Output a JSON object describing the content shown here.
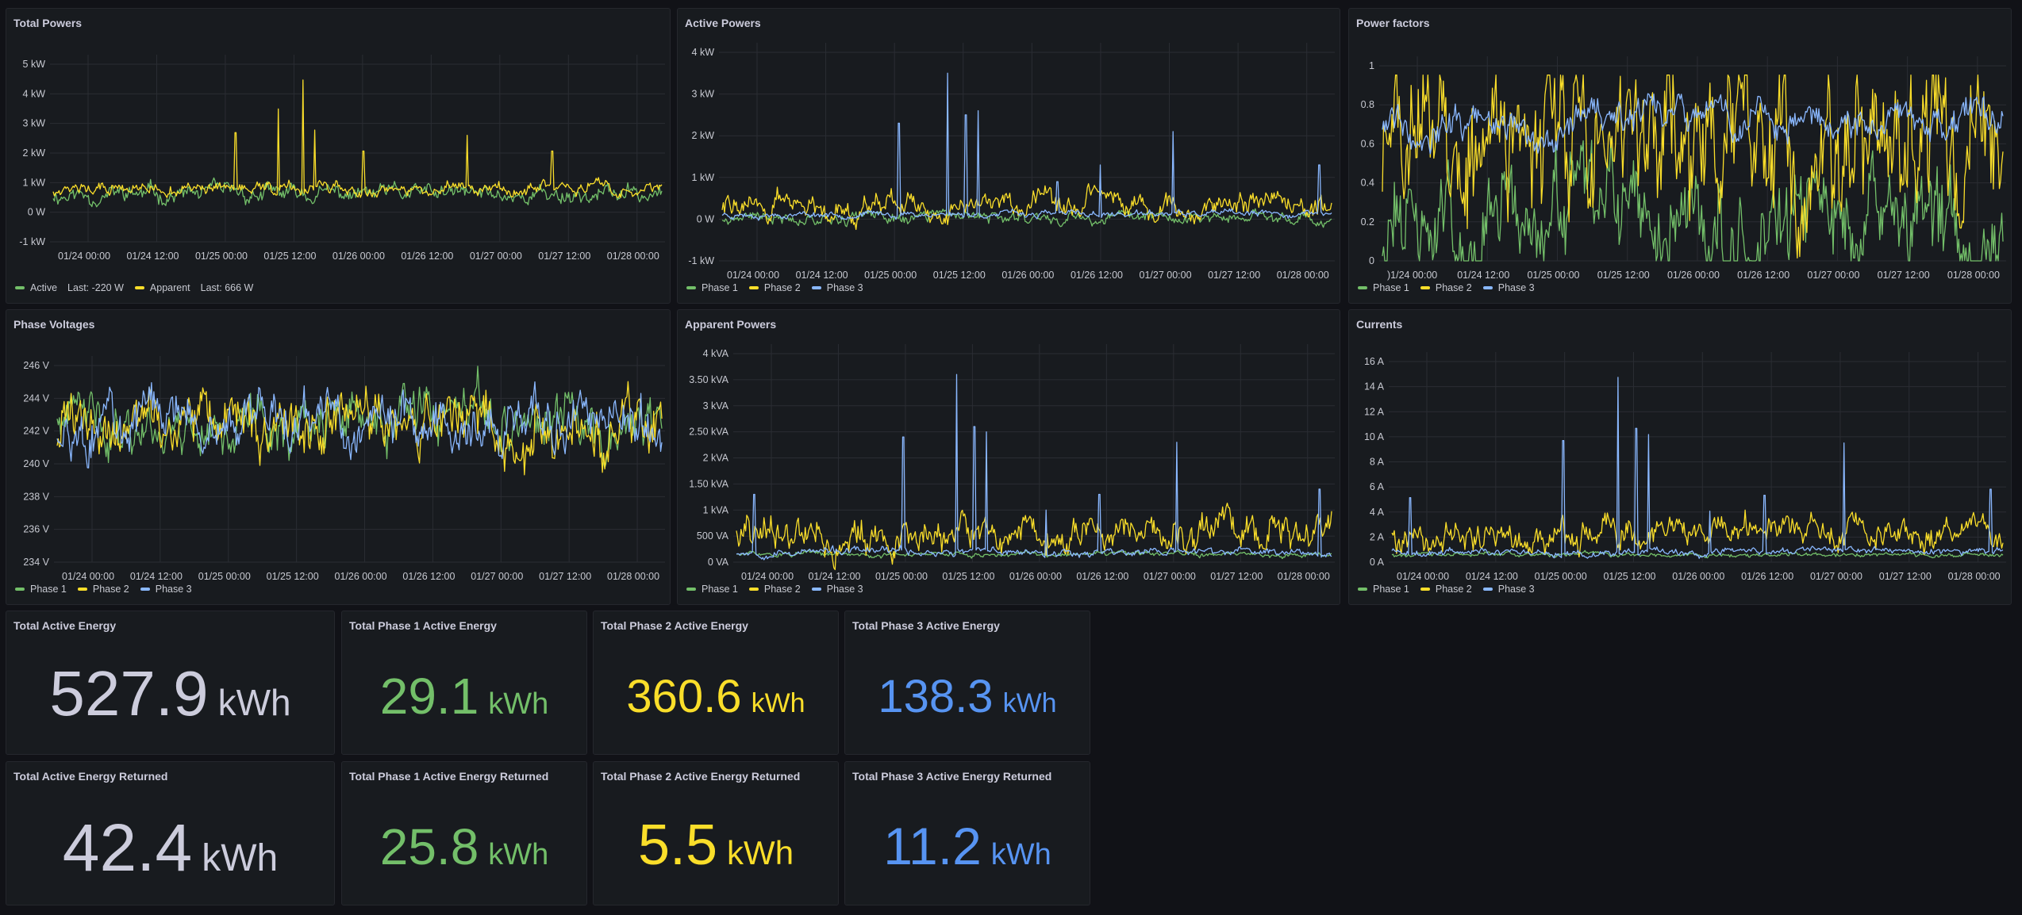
{
  "colors": {
    "phase1": "#73bf69",
    "phase2": "#fade2a",
    "phase3": "#8ab8ff",
    "neutral": "#ccccdc",
    "blue": "#5794f2"
  },
  "x_ticks": [
    "01/24 00:00",
    "01/24 12:00",
    "01/25 00:00",
    "01/25 12:00",
    "01/26 00:00",
    "01/26 12:00",
    "01/27 00:00",
    "01/27 12:00",
    "01/28 00:00"
  ],
  "x_ticks_pf": [
    ")1/24 00:00",
    "01/24 12:00",
    "01/25 00:00",
    "01/25 12:00",
    "01/26 00:00",
    "01/26 12:00",
    "01/27 00:00",
    "01/27 12:00",
    "01/28 00:00"
  ],
  "panels": {
    "total_powers": {
      "title": "Total Powers",
      "y_ticks": [
        "5 kW",
        "4 kW",
        "3 kW",
        "2 kW",
        "1 kW",
        "0 W",
        "-1 kW"
      ],
      "legend": [
        {
          "label": "Active",
          "last": "Last: -220 W",
          "color": "#73bf69"
        },
        {
          "label": "Apparent",
          "last": "Last: 666 W",
          "color": "#fade2a"
        }
      ]
    },
    "active_powers": {
      "title": "Active Powers",
      "y_ticks": [
        "4 kW",
        "3 kW",
        "2 kW",
        "1 kW",
        "0 W",
        "-1 kW"
      ],
      "legend": [
        {
          "label": "Phase 1",
          "color": "#73bf69"
        },
        {
          "label": "Phase 2",
          "color": "#fade2a"
        },
        {
          "label": "Phase 3",
          "color": "#8ab8ff"
        }
      ]
    },
    "power_factors": {
      "title": "Power factors",
      "y_ticks": [
        "1",
        "0.8",
        "0.6",
        "0.4",
        "0.2",
        "0"
      ],
      "legend": [
        {
          "label": "Phase 1",
          "color": "#73bf69"
        },
        {
          "label": "Phase 2",
          "color": "#fade2a"
        },
        {
          "label": "Phase 3",
          "color": "#8ab8ff"
        }
      ]
    },
    "phase_voltages": {
      "title": "Phase Voltages",
      "y_ticks": [
        "246 V",
        "244 V",
        "242 V",
        "240 V",
        "238 V",
        "236 V",
        "234 V"
      ],
      "legend": [
        {
          "label": "Phase 1",
          "color": "#73bf69"
        },
        {
          "label": "Phase 2",
          "color": "#fade2a"
        },
        {
          "label": "Phase 3",
          "color": "#8ab8ff"
        }
      ]
    },
    "apparent_powers": {
      "title": "Apparent Powers",
      "y_ticks": [
        "4 kVA",
        "3.50 kVA",
        "3 kVA",
        "2.50 kVA",
        "2 kVA",
        "1.50 kVA",
        "1 kVA",
        "500 VA",
        "0 VA"
      ],
      "legend": [
        {
          "label": "Phase 1",
          "color": "#73bf69"
        },
        {
          "label": "Phase 2",
          "color": "#fade2a"
        },
        {
          "label": "Phase 3",
          "color": "#8ab8ff"
        }
      ]
    },
    "currents": {
      "title": "Currents",
      "y_ticks": [
        "16 A",
        "14 A",
        "12 A",
        "10 A",
        "8 A",
        "6 A",
        "4 A",
        "2 A",
        "0 A"
      ],
      "legend": [
        {
          "label": "Phase 1",
          "color": "#73bf69"
        },
        {
          "label": "Phase 2",
          "color": "#fade2a"
        },
        {
          "label": "Phase 3",
          "color": "#8ab8ff"
        }
      ]
    }
  },
  "stats": {
    "total_active_energy": {
      "title": "Total Active Energy",
      "value": "527.9",
      "unit": "kWh",
      "color": "#ccccdc"
    },
    "phase1_active_energy": {
      "title": "Total Phase 1 Active Energy",
      "value": "29.1",
      "unit": "kWh",
      "color": "#73bf69"
    },
    "phase2_active_energy": {
      "title": "Total Phase 2 Active Energy",
      "value": "360.6",
      "unit": "kWh",
      "color": "#fade2a"
    },
    "phase3_active_energy": {
      "title": "Total Phase 3 Active Energy",
      "value": "138.3",
      "unit": "kWh",
      "color": "#5794f2"
    },
    "total_active_energy_returned": {
      "title": "Total Active Energy Returned",
      "value": "42.4",
      "unit": "kWh",
      "color": "#ccccdc"
    },
    "phase1_active_energy_returned": {
      "title": "Total Phase 1 Active Energy Returned",
      "value": "25.8",
      "unit": "kWh",
      "color": "#73bf69"
    },
    "phase2_active_energy_returned": {
      "title": "Total Phase 2 Active Energy Returned",
      "value": "5.5",
      "unit": "kWh",
      "color": "#fade2a"
    },
    "phase3_active_energy_returned": {
      "title": "Total Phase 3 Active Energy Returned",
      "value": "11.2",
      "unit": "kWh",
      "color": "#5794f2"
    }
  }
}
